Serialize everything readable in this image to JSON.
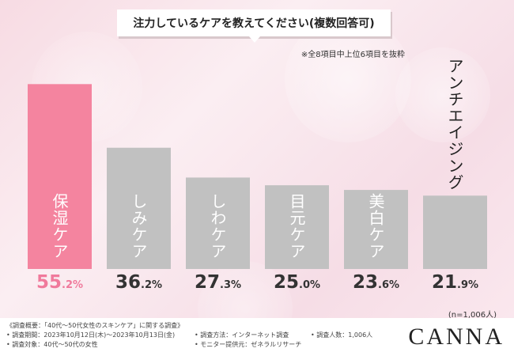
{
  "title": "注力しているケアを教えてください(複数回答可)",
  "note": "※全8項目中上位6項目を抜粋",
  "n_note": "(n=1,006人)",
  "colors": {
    "highlight": "#f4849f",
    "bar": "#c1c1c1",
    "highlight_text": "#f07a9c"
  },
  "chart_data": {
    "type": "bar",
    "title": "注力しているケアを教えてください(複数回答可)",
    "categories": [
      "保湿ケア",
      "しみケア",
      "しわケア",
      "目元ケア",
      "美白ケア",
      "アンチエイジング"
    ],
    "values": [
      55.2,
      36.2,
      27.3,
      25.0,
      23.6,
      21.9
    ],
    "value_labels": [
      {
        "big": "55",
        "small": ".2%"
      },
      {
        "big": "36",
        "small": ".2%"
      },
      {
        "big": "27",
        "small": ".3%"
      },
      {
        "big": "25",
        "small": ".0%"
      },
      {
        "big": "23",
        "small": ".6%"
      },
      {
        "big": "21",
        "small": ".9%"
      }
    ],
    "highlight_index": 0,
    "grid": false,
    "legend": "none"
  },
  "footer": {
    "survey_title": "《調査概要：「40代〜50代女性のスキンケア」に関する調査》",
    "period": "• 調査期間：2023年10月12日(木)〜2023年10月13日(金)",
    "method": "• 調査方法：インターネット調査",
    "people": "• 調査人数：1,006人",
    "target": "• 調査対象：40代〜50代の女性",
    "provider": "• モニター提供元：ゼネラルリサーチ"
  },
  "brand": "CANNA"
}
